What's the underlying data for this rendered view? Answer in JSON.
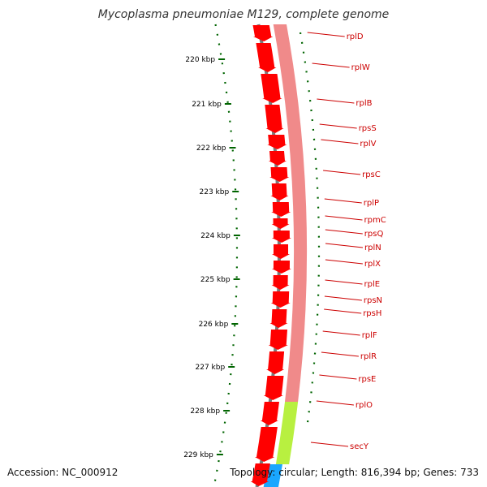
{
  "title": "Mycoplasma pneumoniae M129, complete genome",
  "footer": {
    "accession": "Accession: NC_000912",
    "topology": "Topology: circular; Length: 816,394 bp; Genes: 733"
  },
  "ticks": [
    {
      "label": "220 kbp",
      "kbp": 220
    },
    {
      "label": "221 kbp",
      "kbp": 221
    },
    {
      "label": "222 kbp",
      "kbp": 222
    },
    {
      "label": "223 kbp",
      "kbp": 223
    },
    {
      "label": "224 kbp",
      "kbp": 224
    },
    {
      "label": "225 kbp",
      "kbp": 225
    },
    {
      "label": "226 kbp",
      "kbp": 226
    },
    {
      "label": "227 kbp",
      "kbp": 227
    },
    {
      "label": "228 kbp",
      "kbp": 228
    },
    {
      "label": "229 kbp",
      "kbp": 229
    }
  ],
  "genes": [
    "rplD",
    "rplW",
    "rplB",
    "rpsS",
    "rplV",
    "rpsC",
    "rplP",
    "rpmC",
    "rpsQ",
    "rplN",
    "rplX",
    "rplE",
    "rpsN",
    "rpsH",
    "rplF",
    "rplR",
    "rpsE",
    "rplO",
    "secY"
  ],
  "colors": {
    "gene_label": "#cc0000",
    "cds": "#ff0000",
    "cds_light": "#f08a8a",
    "secY_feature": "#b8f040",
    "backbone": "#7a7a7a",
    "tick": "#006400",
    "cyan_feature": "#1aa7ff"
  }
}
